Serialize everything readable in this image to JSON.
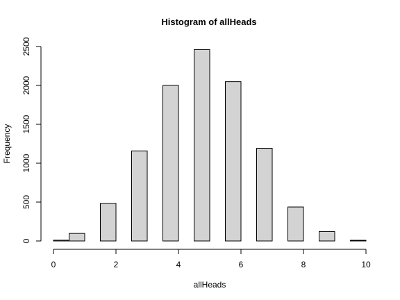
{
  "chart_data": {
    "type": "bar",
    "title": "Histogram of allHeads",
    "xlabel": "allHeads",
    "ylabel": "Frequency",
    "bins": [
      {
        "x0": 0.0,
        "x1": 0.5,
        "count": 10
      },
      {
        "x0": 0.5,
        "x1": 1.0,
        "count": 97
      },
      {
        "x0": 1.5,
        "x1": 2.0,
        "count": 483
      },
      {
        "x0": 2.5,
        "x1": 3.0,
        "count": 1158
      },
      {
        "x0": 3.5,
        "x1": 4.0,
        "count": 2000
      },
      {
        "x0": 4.5,
        "x1": 5.0,
        "count": 2460
      },
      {
        "x0": 5.5,
        "x1": 6.0,
        "count": 2048
      },
      {
        "x0": 6.5,
        "x1": 7.0,
        "count": 1192
      },
      {
        "x0": 7.5,
        "x1": 8.0,
        "count": 437
      },
      {
        "x0": 8.5,
        "x1": 9.0,
        "count": 121
      },
      {
        "x0": 9.5,
        "x1": 10.0,
        "count": 9
      }
    ],
    "xlim": [
      0,
      10
    ],
    "ylim": [
      0,
      2500
    ],
    "xticks": [
      "0",
      "2",
      "4",
      "6",
      "8",
      "10"
    ],
    "yticks": [
      "0",
      "500",
      "1000",
      "1500",
      "2000",
      "2500"
    ],
    "bar_color": "#d3d3d3",
    "edge_color": "#000000",
    "grid": false,
    "legend": "none"
  }
}
